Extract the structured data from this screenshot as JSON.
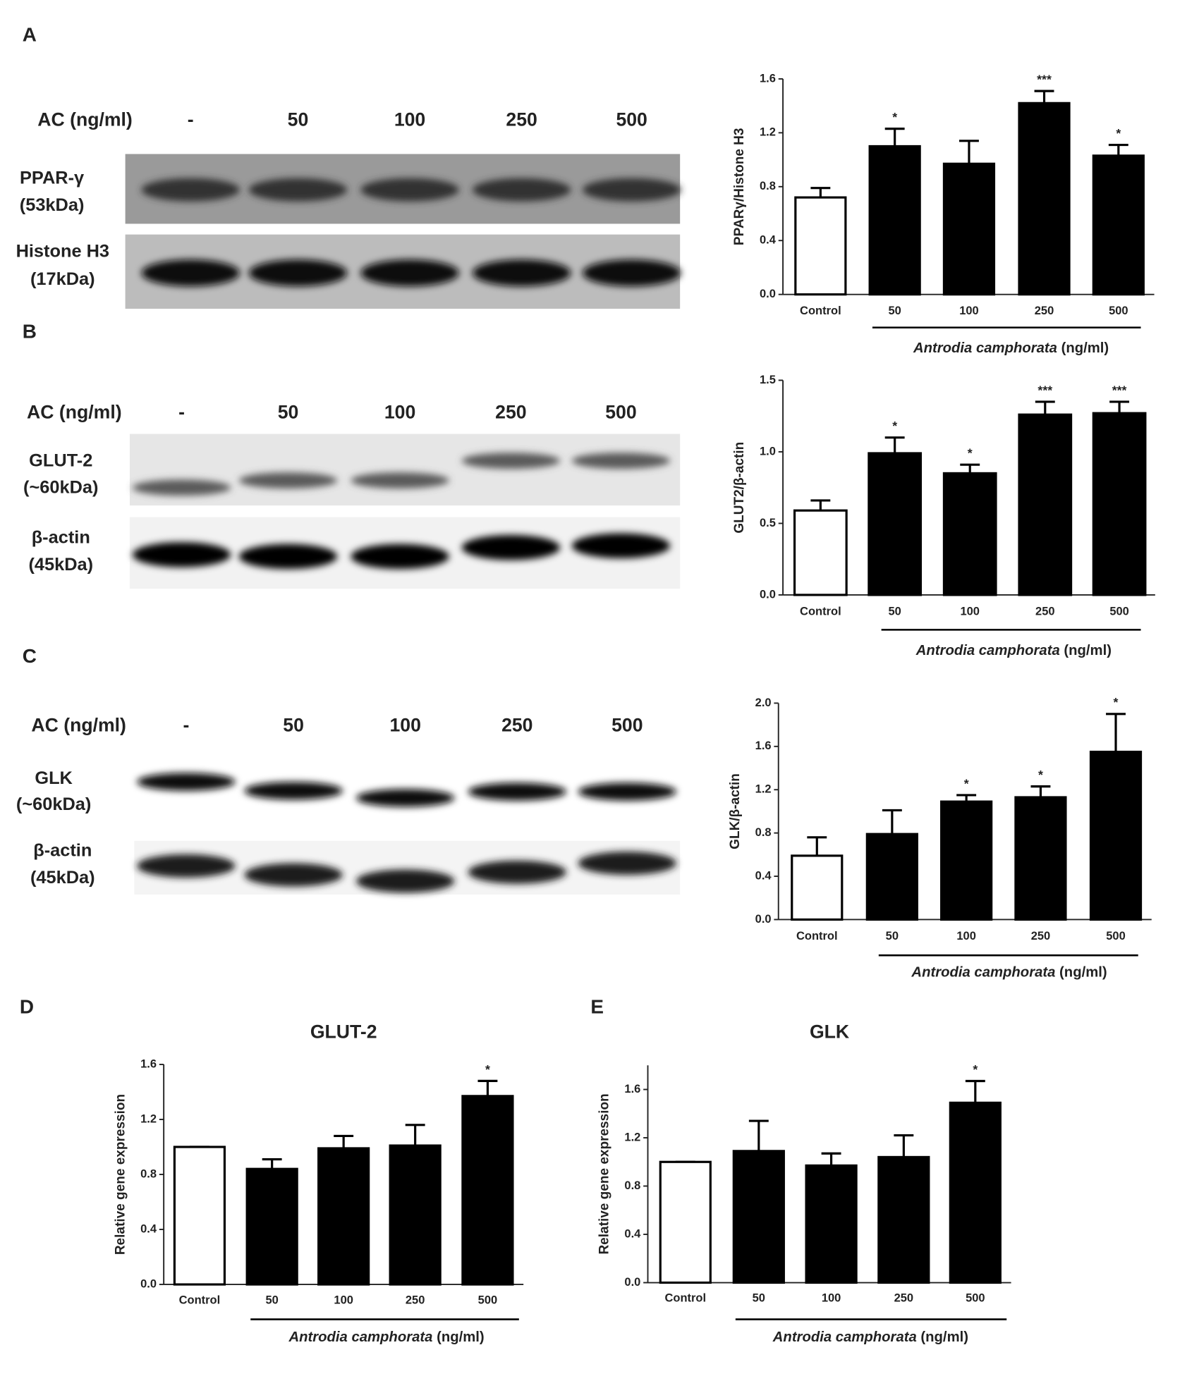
{
  "panel_labels": [
    "A",
    "B",
    "C",
    "D",
    "E"
  ],
  "blots": [
    {
      "treatment": "AC (ng/ml)",
      "lanes": [
        "-",
        "50",
        "100",
        "250",
        "500"
      ],
      "rows": [
        {
          "name": "PPAR-γ",
          "size": "(53kDa)"
        },
        {
          "name": "Histone H3",
          "size": "(17kDa)"
        }
      ]
    },
    {
      "treatment": "AC (ng/ml)",
      "lanes": [
        "-",
        "50",
        "100",
        "250",
        "500"
      ],
      "rows": [
        {
          "name": "GLUT-2",
          "size": "(~60kDa)"
        },
        {
          "name": "β-actin",
          "size": "(45kDa)"
        }
      ]
    },
    {
      "treatment": "AC (ng/ml)",
      "lanes": [
        "-",
        "50",
        "100",
        "250",
        "500"
      ],
      "rows": [
        {
          "name": "GLK",
          "size": "(~60kDa)"
        },
        {
          "name": "β-actin",
          "size": "(45kDa)"
        }
      ]
    }
  ],
  "chart_data": [
    {
      "type": "bar",
      "ylabel": "PPARγ/Histone H3",
      "xlabel": "Antrodia camphorata",
      "xlabel_unit": "(ng/ml)",
      "categories": [
        "Control",
        "50",
        "100",
        "250",
        "500"
      ],
      "values": [
        0.72,
        1.1,
        0.97,
        1.42,
        1.03
      ],
      "errors": [
        0.07,
        0.13,
        0.17,
        0.09,
        0.08
      ],
      "annotations": [
        null,
        "*",
        null,
        "***",
        "*"
      ],
      "colors": [
        "#ffffff",
        "#000000",
        "#000000",
        "#000000",
        "#000000"
      ],
      "ylim": [
        0,
        1.6
      ],
      "yticks": [
        {
          "value": 0,
          "label": "0.0"
        },
        0.4,
        0.8,
        1.2,
        1.6
      ]
    },
    {
      "type": "bar",
      "ylabel": "GLUT2/β-actin",
      "xlabel": "Antrodia camphorata",
      "xlabel_unit": "(ng/ml)",
      "categories": [
        "Control",
        "50",
        "100",
        "250",
        "500"
      ],
      "values": [
        0.59,
        0.99,
        0.85,
        1.26,
        1.27
      ],
      "errors": [
        0.07,
        0.11,
        0.06,
        0.09,
        0.08
      ],
      "annotations": [
        null,
        "*",
        "*",
        "***",
        "***"
      ],
      "colors": [
        "#ffffff",
        "#000000",
        "#000000",
        "#000000",
        "#000000"
      ],
      "ylim": [
        0,
        1.5
      ],
      "yticks": [
        {
          "value": 0,
          "label": "0.0"
        },
        0.5,
        {
          "value": 1,
          "label": "1.0"
        },
        1.5
      ]
    },
    {
      "type": "bar",
      "ylabel": "GLK/β-actin",
      "xlabel": "Antrodia camphorata",
      "xlabel_unit": "(ng/ml)",
      "categories": [
        "Control",
        "50",
        "100",
        "250",
        "500"
      ],
      "values": [
        0.59,
        0.79,
        1.09,
        1.13,
        1.55
      ],
      "errors": [
        0.17,
        0.22,
        0.06,
        0.1,
        0.35
      ],
      "annotations": [
        null,
        null,
        "*",
        "*",
        "*"
      ],
      "colors": [
        "#ffffff",
        "#000000",
        "#000000",
        "#000000",
        "#000000"
      ],
      "ylim": [
        0,
        2.0
      ],
      "yticks": [
        {
          "value": 0,
          "label": "0.0"
        },
        0.4,
        0.8,
        1.2,
        1.6,
        {
          "value": 2,
          "label": "2.0"
        }
      ]
    },
    {
      "type": "bar",
      "title": "GLUT-2",
      "ylabel": "Relative gene expression",
      "xlabel": "Antrodia camphorata",
      "xlabel_unit": "(ng/ml)",
      "categories": [
        "Control",
        "50",
        "100",
        "250",
        "500"
      ],
      "values": [
        1.0,
        0.84,
        0.99,
        1.01,
        1.37
      ],
      "errors": [
        0,
        0.07,
        0.09,
        0.15,
        0.11
      ],
      "annotations": [
        null,
        null,
        null,
        null,
        "*"
      ],
      "colors": [
        "#ffffff",
        "#000000",
        "#000000",
        "#000000",
        "#000000"
      ],
      "ylim": [
        0,
        1.6
      ],
      "yticks": [
        {
          "value": 0,
          "label": "0.0"
        },
        0.4,
        0.8,
        1.2,
        1.6
      ]
    },
    {
      "type": "bar",
      "title": "GLK",
      "ylabel": "Relative gene expression",
      "xlabel": "Antrodia camphorata",
      "xlabel_unit": "(ng/ml)",
      "categories": [
        "Control",
        "50",
        "100",
        "250",
        "500"
      ],
      "values": [
        1.0,
        1.09,
        0.97,
        1.04,
        1.49
      ],
      "errors": [
        0,
        0.25,
        0.1,
        0.18,
        0.18
      ],
      "annotations": [
        null,
        null,
        null,
        null,
        "*"
      ],
      "colors": [
        "#ffffff",
        "#000000",
        "#000000",
        "#000000",
        "#000000"
      ],
      "ylim": [
        0,
        1.8
      ],
      "yticks": [
        {
          "value": 0,
          "label": "0.0"
        },
        0.4,
        0.8,
        1.2,
        1.6
      ]
    }
  ]
}
